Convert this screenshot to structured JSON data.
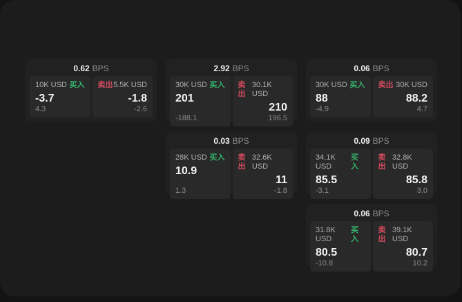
{
  "labels": {
    "bps_unit": "BPS",
    "buy": "买入",
    "sell": "卖出"
  },
  "colors": {
    "buy": "#35b46a",
    "sell": "#d04a5e",
    "outer_bg": "#131313",
    "panel_bg": "#1c1c1c",
    "card_bg": "#212121",
    "tile_bg": "#292929"
  },
  "cards": [
    {
      "bps": "0.62",
      "buy": {
        "size": "10K USD",
        "value": "-3.7",
        "sub": "4.3"
      },
      "sell": {
        "size": "5.5K USD",
        "value": "-1.8",
        "sub": "-2.6"
      }
    },
    {
      "bps": "2.92",
      "buy": {
        "size": "30K USD",
        "value": "201",
        "sub": "-188.1"
      },
      "sell": {
        "size": "30.1K USD",
        "value": "210",
        "sub": "196.5"
      }
    },
    {
      "bps": "0.06",
      "buy": {
        "size": "30K USD",
        "value": "88",
        "sub": "-4.9"
      },
      "sell": {
        "size": "30K USD",
        "value": "88.2",
        "sub": "4.7"
      }
    },
    {
      "bps": "0.03",
      "buy": {
        "size": "28K USD",
        "value": "10.9",
        "sub": "1.3"
      },
      "sell": {
        "size": "32.6K USD",
        "value": "11",
        "sub": "-1.8"
      }
    },
    {
      "bps": "0.09",
      "buy": {
        "size": "34.1K USD",
        "value": "85.5",
        "sub": "-3.1"
      },
      "sell": {
        "size": "32.8K USD",
        "value": "85.8",
        "sub": "3.0"
      }
    },
    {
      "bps": "0.06",
      "buy": {
        "size": "31.8K USD",
        "value": "80.5",
        "sub": "-10.8"
      },
      "sell": {
        "size": "39.1K USD",
        "value": "80.7",
        "sub": "10.2"
      }
    }
  ]
}
